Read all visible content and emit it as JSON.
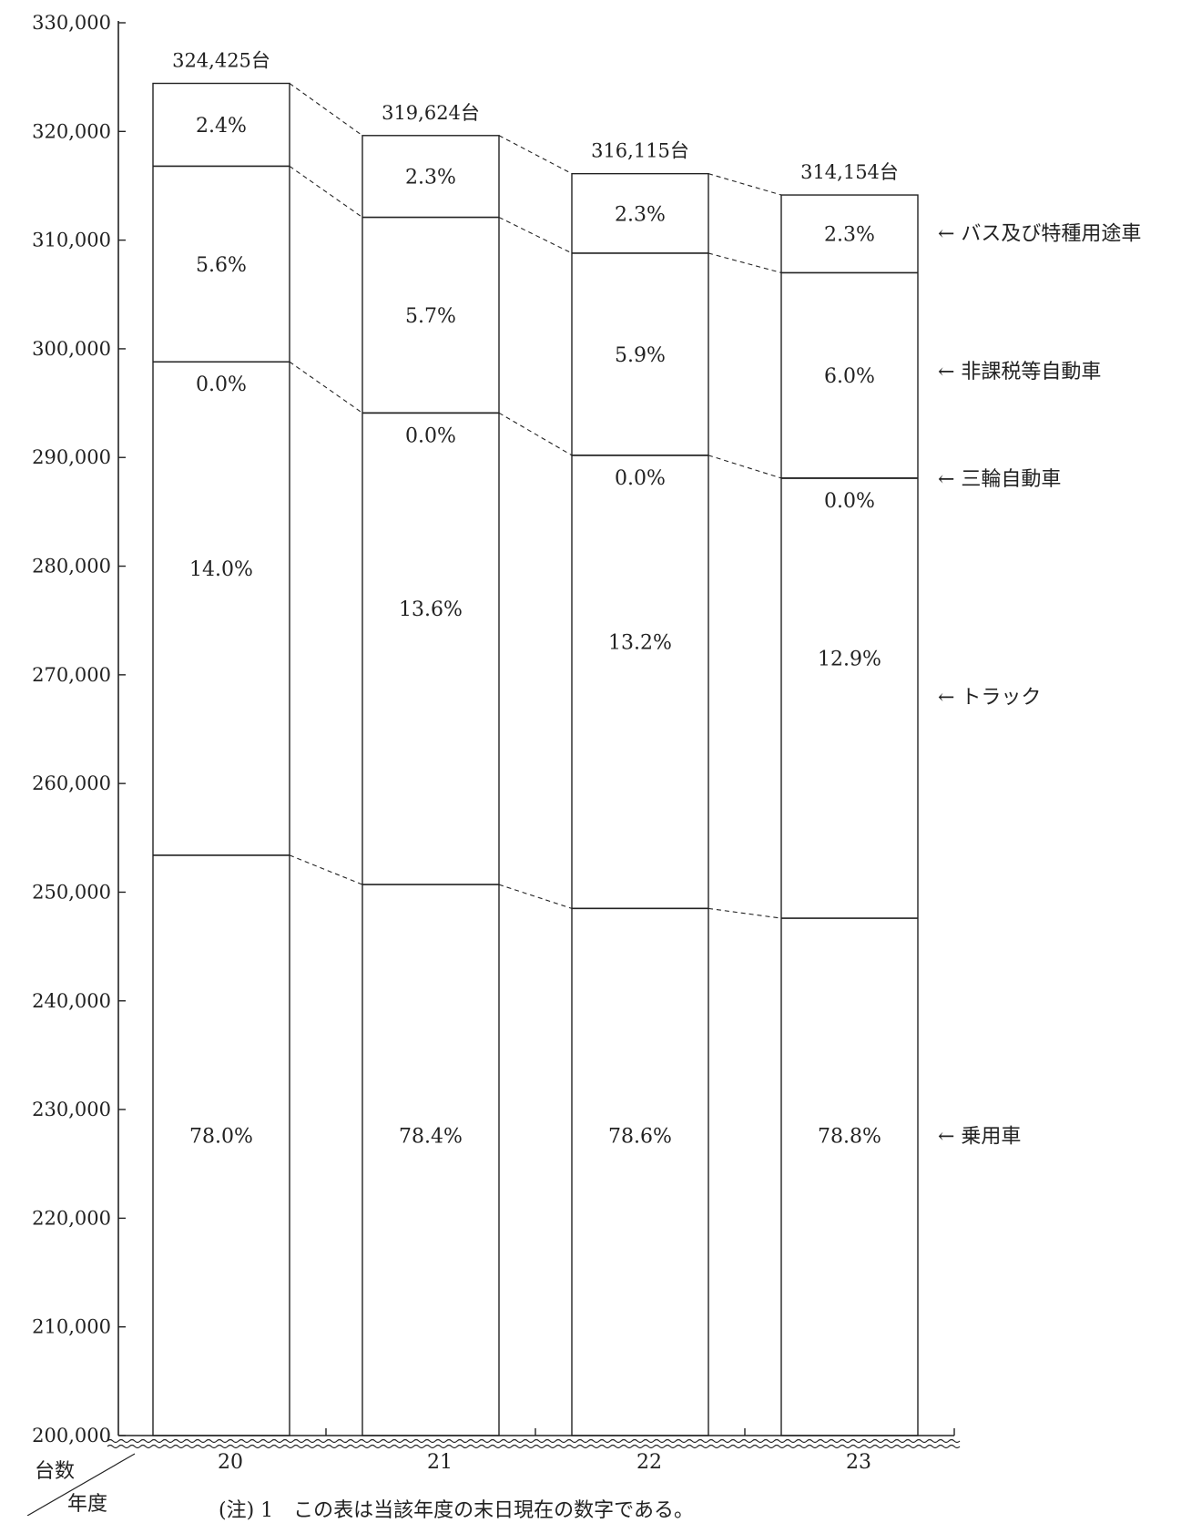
{
  "chart_data": {
    "type": "bar",
    "stacked": true,
    "title": "",
    "xlabel": "年度",
    "ylabel": "台数",
    "ylim": [
      200000,
      330000
    ],
    "y_ticks": [
      "200,000",
      "210,000",
      "220,000",
      "230,000",
      "240,000",
      "250,000",
      "260,000",
      "270,000",
      "280,000",
      "290,000",
      "300,000",
      "310,000",
      "320,000",
      "330,000"
    ],
    "y_tick_values": [
      200000,
      210000,
      220000,
      230000,
      240000,
      250000,
      260000,
      270000,
      280000,
      290000,
      300000,
      310000,
      320000,
      330000
    ],
    "categories": [
      "20",
      "21",
      "22",
      "23"
    ],
    "totals": [
      324425,
      319624,
      316115,
      314154
    ],
    "total_labels": [
      "324,425台",
      "319,624台",
      "316,115台",
      "314,154台"
    ],
    "series": [
      {
        "name": "乗用車",
        "legend_label": "← 乗用車",
        "boundary_top": [
          253400,
          250700,
          248500,
          247600
        ],
        "percent_labels": [
          "78.0%",
          "78.4%",
          "78.6%",
          "78.8%"
        ]
      },
      {
        "name": "トラック",
        "legend_label": "← トラック",
        "boundary_top": [
          298800,
          294100,
          290200,
          288100
        ],
        "percent_labels": [
          "14.0%",
          "13.6%",
          "13.2%",
          "12.9%"
        ]
      },
      {
        "name": "三輪自動車",
        "legend_label": "← 三輪自動車",
        "boundary_top": [
          298800,
          294100,
          290200,
          288100
        ],
        "percent_labels": [
          "0.0%",
          "0.0%",
          "0.0%",
          "0.0%"
        ]
      },
      {
        "name": "非課税等自動車",
        "legend_label": "← 非課税等自動車",
        "boundary_top": [
          316800,
          312100,
          308800,
          307000
        ],
        "percent_labels": [
          "5.6%",
          "5.7%",
          "5.9%",
          "6.0%"
        ]
      },
      {
        "name": "バス及び特種用途車",
        "legend_label": "← バス及び特種用途車",
        "boundary_top": [
          324425,
          319624,
          316115,
          314154
        ],
        "percent_labels": [
          "2.4%",
          "2.3%",
          "2.3%",
          "2.3%"
        ]
      }
    ],
    "grid": false,
    "legend": "right"
  },
  "note": "(注) 1　この表は当該年度の末日現在の数字である。",
  "colors": {
    "line": "#222222",
    "background": "#ffffff"
  }
}
